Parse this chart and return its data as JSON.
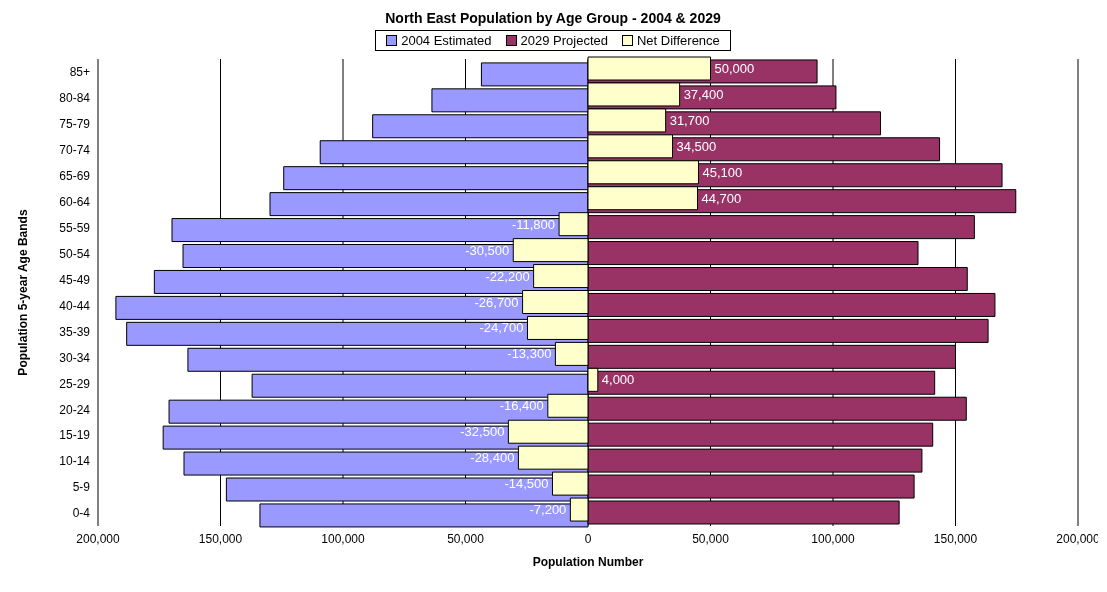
{
  "chart_data": {
    "type": "bar",
    "orientation": "horizontal",
    "title": "North East Population by Age Group - 2004 & 2029",
    "xlabel": "Population Number",
    "ylabel": "Population 5-year Age Bands",
    "categories": [
      "85+",
      "80-84",
      "75-79",
      "70-74",
      "65-69",
      "60-64",
      "55-59",
      "50-54",
      "45-49",
      "40-44",
      "35-39",
      "30-34",
      "25-29",
      "20-24",
      "15-19",
      "10-14",
      "5-9",
      "0-4"
    ],
    "series": [
      {
        "name": "2004 Estimated",
        "color": "#9999ff",
        "values": [
          -43500,
          -63700,
          -87900,
          -109300,
          -124200,
          -129800,
          -169800,
          -165300,
          -177000,
          -192700,
          -188300,
          -163300,
          -137100,
          -171000,
          -173400,
          -164900,
          -147600,
          -133900
        ]
      },
      {
        "name": "2029 Projected",
        "color": "#993366",
        "values": [
          93500,
          101200,
          119400,
          143500,
          169000,
          174600,
          157700,
          134700,
          154800,
          166100,
          163300,
          150000,
          141500,
          154400,
          140700,
          136300,
          133100,
          127000
        ]
      },
      {
        "name": "Net Difference",
        "color": "#ffffcc",
        "values": [
          50000,
          37400,
          31700,
          34500,
          45100,
          44700,
          -11800,
          -30500,
          -22200,
          -26700,
          -24700,
          -13300,
          4000,
          -16400,
          -32500,
          -28400,
          -14500,
          -7200
        ],
        "value_labels": [
          "50,000",
          "37,400",
          "31,700",
          "34,500",
          "45,100",
          "44,700",
          "-11,800",
          "-30,500",
          "-22,200",
          "-26,700",
          "-24,700",
          "-13,300",
          "4,000",
          "-16,400",
          "-32,500",
          "-28,400",
          "-14,500",
          "-7,200"
        ]
      }
    ],
    "xlim": [
      -200000,
      200000
    ],
    "xticks": [
      {
        "value": -200000,
        "label": "200,000"
      },
      {
        "value": -150000,
        "label": "150,000"
      },
      {
        "value": -100000,
        "label": "100,000"
      },
      {
        "value": -50000,
        "label": "50,000"
      },
      0,
      {
        "value": 50000,
        "label": "50,000"
      },
      {
        "value": 100000,
        "label": "100,000"
      },
      {
        "value": 150000,
        "label": "150,000"
      },
      {
        "value": 200000,
        "label": "200,000"
      }
    ],
    "grid": "x",
    "legend": "top"
  }
}
